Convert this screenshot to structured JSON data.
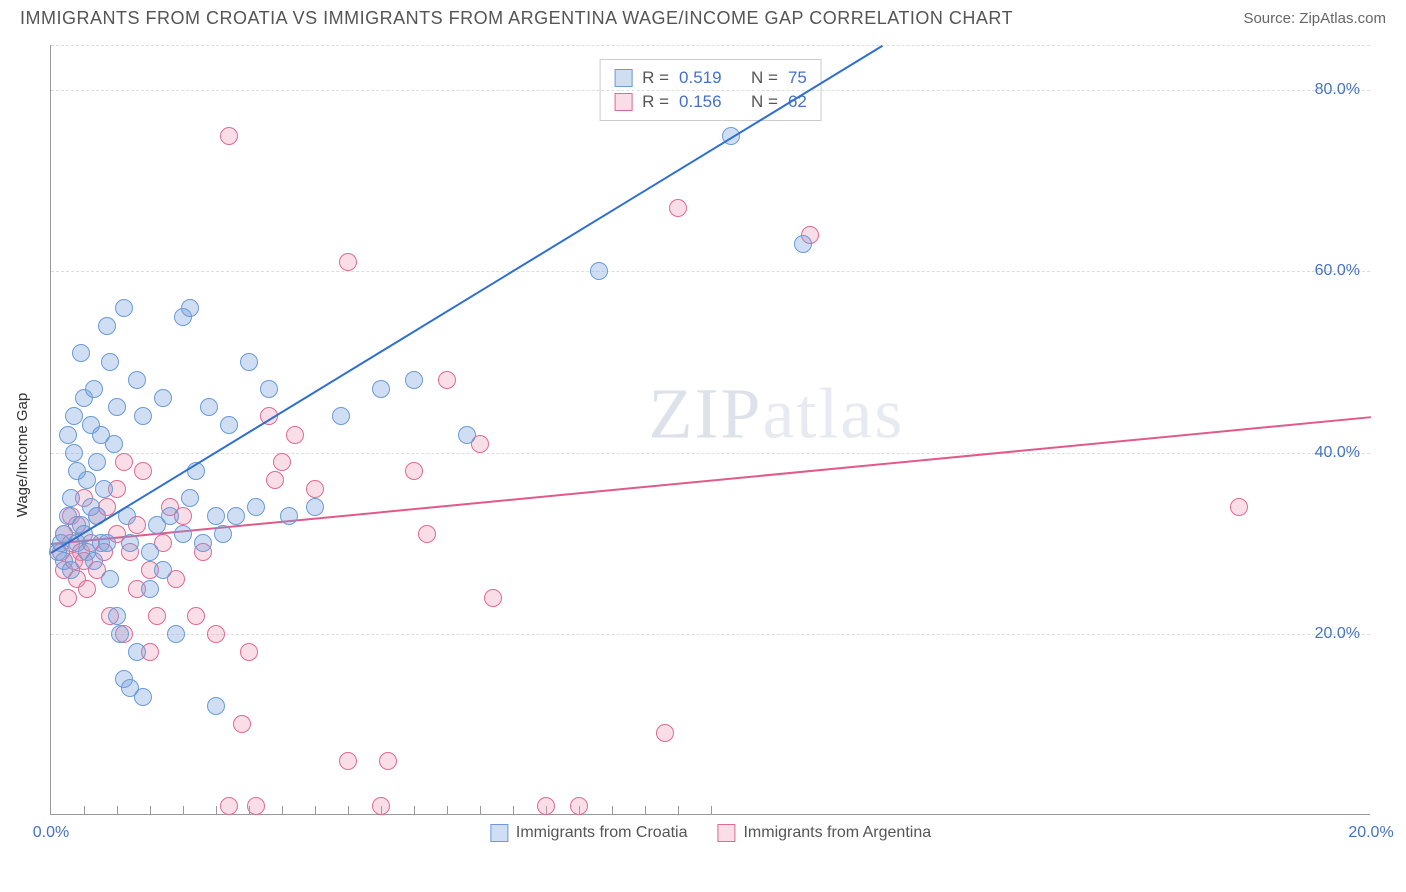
{
  "header": {
    "title": "IMMIGRANTS FROM CROATIA VS IMMIGRANTS FROM ARGENTINA WAGE/INCOME GAP CORRELATION CHART",
    "source": "Source: ZipAtlas.com"
  },
  "chart": {
    "type": "scatter",
    "y_axis_label": "Wage/Income Gap",
    "xlim": [
      0,
      20
    ],
    "ylim": [
      0,
      85
    ],
    "y_ticks": [
      20,
      40,
      60,
      80
    ],
    "y_tick_labels": [
      "20.0%",
      "40.0%",
      "60.0%",
      "80.0%"
    ],
    "x_tick_left": "0.0%",
    "x_tick_right": "20.0%",
    "x_minor_ticks": [
      0.5,
      1,
      1.5,
      2,
      2.5,
      3,
      3.5,
      4,
      4.5,
      5,
      5.5,
      6,
      6.5,
      7,
      7.5,
      8,
      8.5,
      9,
      9.5,
      10
    ],
    "background_color": "#ffffff",
    "grid_color": "#dddddd",
    "axis_color": "#999999",
    "marker_radius": 9,
    "marker_border_width": 1.2,
    "series": {
      "croatia": {
        "label": "Immigrants from Croatia",
        "fill": "rgba(120,160,220,0.35)",
        "stroke": "#6a9bd8",
        "trend_color": "#2e6fd0",
        "trend": {
          "x1": 0,
          "y1": 29,
          "x2": 12.6,
          "y2": 85
        },
        "R": "0.519",
        "N": "75",
        "points": [
          [
            0.1,
            29
          ],
          [
            0.15,
            30
          ],
          [
            0.2,
            28
          ],
          [
            0.2,
            31
          ],
          [
            0.25,
            42
          ],
          [
            0.25,
            33
          ],
          [
            0.3,
            27
          ],
          [
            0.3,
            35
          ],
          [
            0.35,
            40
          ],
          [
            0.35,
            44
          ],
          [
            0.4,
            38
          ],
          [
            0.4,
            30
          ],
          [
            0.45,
            32
          ],
          [
            0.45,
            51
          ],
          [
            0.5,
            46
          ],
          [
            0.5,
            31
          ],
          [
            0.55,
            37
          ],
          [
            0.55,
            29
          ],
          [
            0.6,
            34
          ],
          [
            0.6,
            43
          ],
          [
            0.65,
            47
          ],
          [
            0.65,
            28
          ],
          [
            0.7,
            39
          ],
          [
            0.7,
            33
          ],
          [
            0.75,
            30
          ],
          [
            0.75,
            42
          ],
          [
            0.8,
            36
          ],
          [
            0.85,
            54
          ],
          [
            0.85,
            30
          ],
          [
            0.9,
            50
          ],
          [
            0.9,
            26
          ],
          [
            0.95,
            41
          ],
          [
            1.0,
            45
          ],
          [
            1.0,
            22
          ],
          [
            1.05,
            20
          ],
          [
            1.1,
            56
          ],
          [
            1.1,
            15
          ],
          [
            1.15,
            33
          ],
          [
            1.2,
            14
          ],
          [
            1.2,
            30
          ],
          [
            1.3,
            18
          ],
          [
            1.3,
            48
          ],
          [
            1.4,
            44
          ],
          [
            1.4,
            13
          ],
          [
            1.5,
            29
          ],
          [
            1.5,
            25
          ],
          [
            1.6,
            32
          ],
          [
            1.7,
            27
          ],
          [
            1.7,
            46
          ],
          [
            1.8,
            33
          ],
          [
            1.9,
            20
          ],
          [
            2.0,
            31
          ],
          [
            2.0,
            55
          ],
          [
            2.1,
            56
          ],
          [
            2.1,
            35
          ],
          [
            2.2,
            38
          ],
          [
            2.3,
            30
          ],
          [
            2.4,
            45
          ],
          [
            2.5,
            33
          ],
          [
            2.5,
            12
          ],
          [
            2.6,
            31
          ],
          [
            2.7,
            43
          ],
          [
            2.8,
            33
          ],
          [
            3.0,
            50
          ],
          [
            3.1,
            34
          ],
          [
            3.3,
            47
          ],
          [
            3.6,
            33
          ],
          [
            4.0,
            34
          ],
          [
            4.4,
            44
          ],
          [
            5.0,
            47
          ],
          [
            5.5,
            48
          ],
          [
            6.3,
            42
          ],
          [
            8.3,
            60
          ],
          [
            10.3,
            75
          ],
          [
            11.4,
            63
          ]
        ]
      },
      "argentina": {
        "label": "Immigrants from Argentina",
        "fill": "rgba(235,145,175,0.30)",
        "stroke": "#e06a94",
        "trend_color": "#e05a8a",
        "trend": {
          "x1": 0,
          "y1": 30,
          "x2": 20,
          "y2": 44
        },
        "R": "0.156",
        "N": "62",
        "points": [
          [
            0.15,
            29
          ],
          [
            0.2,
            27
          ],
          [
            0.2,
            31
          ],
          [
            0.25,
            24
          ],
          [
            0.3,
            30
          ],
          [
            0.3,
            33
          ],
          [
            0.35,
            28
          ],
          [
            0.4,
            26
          ],
          [
            0.4,
            32
          ],
          [
            0.45,
            29
          ],
          [
            0.5,
            35
          ],
          [
            0.5,
            28
          ],
          [
            0.55,
            25
          ],
          [
            0.6,
            30
          ],
          [
            0.7,
            27
          ],
          [
            0.7,
            33
          ],
          [
            0.8,
            29
          ],
          [
            0.85,
            34
          ],
          [
            0.9,
            22
          ],
          [
            1.0,
            31
          ],
          [
            1.0,
            36
          ],
          [
            1.1,
            39
          ],
          [
            1.1,
            20
          ],
          [
            1.2,
            29
          ],
          [
            1.3,
            25
          ],
          [
            1.3,
            32
          ],
          [
            1.4,
            38
          ],
          [
            1.5,
            27
          ],
          [
            1.5,
            18
          ],
          [
            1.6,
            22
          ],
          [
            1.7,
            30
          ],
          [
            1.8,
            34
          ],
          [
            1.9,
            26
          ],
          [
            2.0,
            33
          ],
          [
            2.2,
            22
          ],
          [
            2.3,
            29
          ],
          [
            2.5,
            20
          ],
          [
            2.7,
            75
          ],
          [
            2.7,
            1
          ],
          [
            2.9,
            10
          ],
          [
            3.0,
            18
          ],
          [
            3.1,
            1
          ],
          [
            3.3,
            44
          ],
          [
            3.4,
            37
          ],
          [
            3.5,
            39
          ],
          [
            3.7,
            42
          ],
          [
            4.0,
            36
          ],
          [
            4.5,
            61
          ],
          [
            4.5,
            6
          ],
          [
            5.0,
            1
          ],
          [
            5.1,
            6
          ],
          [
            5.5,
            38
          ],
          [
            5.7,
            31
          ],
          [
            6.0,
            48
          ],
          [
            6.5,
            41
          ],
          [
            6.7,
            24
          ],
          [
            7.5,
            1
          ],
          [
            8.0,
            1
          ],
          [
            9.3,
            9
          ],
          [
            9.5,
            67
          ],
          [
            11.5,
            64
          ],
          [
            18.0,
            34
          ]
        ]
      }
    },
    "legend_top": {
      "r_label": "R =",
      "n_label": "N ="
    },
    "watermark": {
      "zip": "ZIP",
      "atlas": "atlas"
    }
  }
}
